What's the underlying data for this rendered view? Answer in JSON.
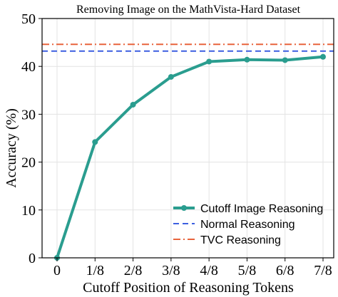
{
  "chart_data": {
    "type": "line",
    "title": "Removing Image on the MathVista-Hard Dataset",
    "xlabel": "Cutoff Position of Reasoning Tokens",
    "ylabel": "Accuracy (%)",
    "categories": [
      "0",
      "1/8",
      "2/8",
      "3/8",
      "4/8",
      "5/8",
      "6/8",
      "7/8"
    ],
    "ylim": [
      0,
      50
    ],
    "yticks": [
      "0",
      "10",
      "20",
      "30",
      "40",
      "50"
    ],
    "grid": true,
    "legend_position": "lower-right",
    "series": [
      {
        "name": "Cutoff Image Reasoning",
        "style": "solid-with-markers",
        "color": "#2a9d8f",
        "values": [
          0,
          24.2,
          32.0,
          37.8,
          41.0,
          41.4,
          41.3,
          42.0
        ]
      }
    ],
    "reference_lines": [
      {
        "name": "Normal Reasoning",
        "style": "dashed",
        "color": "#3c5fe0",
        "value": 43.2
      },
      {
        "name": "TVC Reasoning",
        "style": "dash-dot",
        "color": "#e8643c",
        "value": 44.6
      }
    ]
  }
}
